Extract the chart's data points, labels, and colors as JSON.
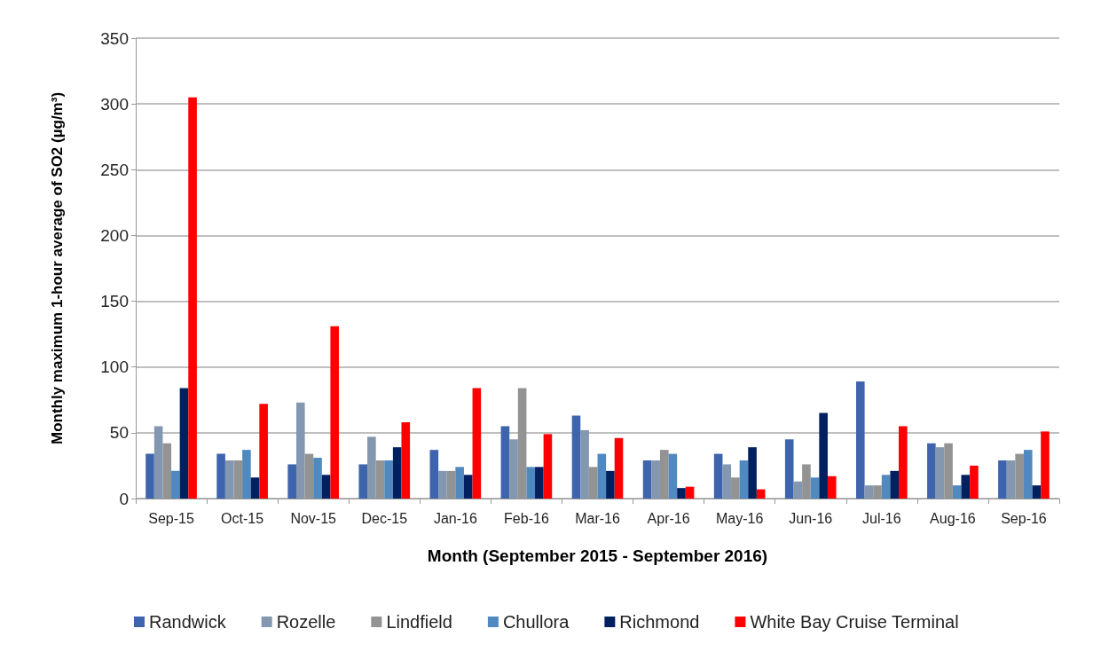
{
  "chart_data": {
    "type": "bar",
    "xlabel": "Month (September 2015 - September 2016)",
    "ylabel": "Monthly maximum 1-hour average of SO2 (µg/m³)",
    "categories": [
      "Sep-15",
      "Oct-15",
      "Nov-15",
      "Dec-15",
      "Jan-16",
      "Feb-16",
      "Mar-16",
      "Apr-16",
      "May-16",
      "Jun-16",
      "Jul-16",
      "Aug-16",
      "Sep-16"
    ],
    "series": [
      {
        "name": "Randwick",
        "color": "#3d64ad",
        "values": [
          34,
          34,
          26,
          26,
          37,
          55,
          63,
          29,
          34,
          45,
          89,
          42,
          29
        ]
      },
      {
        "name": "Rozelle",
        "color": "#8497b0",
        "values": [
          55,
          29,
          73,
          47,
          21,
          45,
          52,
          29,
          26,
          13,
          10,
          39,
          29
        ]
      },
      {
        "name": "Lindfield",
        "color": "#939393",
        "values": [
          42,
          29,
          34,
          29,
          21,
          84,
          24,
          37,
          16,
          26,
          10,
          42,
          34
        ]
      },
      {
        "name": "Chullora",
        "color": "#4f89bf",
        "values": [
          21,
          37,
          31,
          29,
          24,
          24,
          34,
          34,
          29,
          16,
          18,
          10,
          37
        ]
      },
      {
        "name": "Richmond",
        "color": "#002060",
        "values": [
          84,
          16,
          18,
          39,
          18,
          24,
          21,
          8,
          39,
          65,
          21,
          18,
          10
        ]
      },
      {
        "name": "White Bay Cruise Terminal",
        "color": "#ff0000",
        "values": [
          305,
          72,
          131,
          58,
          84,
          49,
          46,
          9,
          7,
          17,
          55,
          25,
          51
        ]
      }
    ],
    "ylim": [
      0,
      350
    ],
    "yticks": [
      0,
      50,
      100,
      150,
      200,
      250,
      300,
      350
    ],
    "grid": "y",
    "legend": "bottom"
  }
}
